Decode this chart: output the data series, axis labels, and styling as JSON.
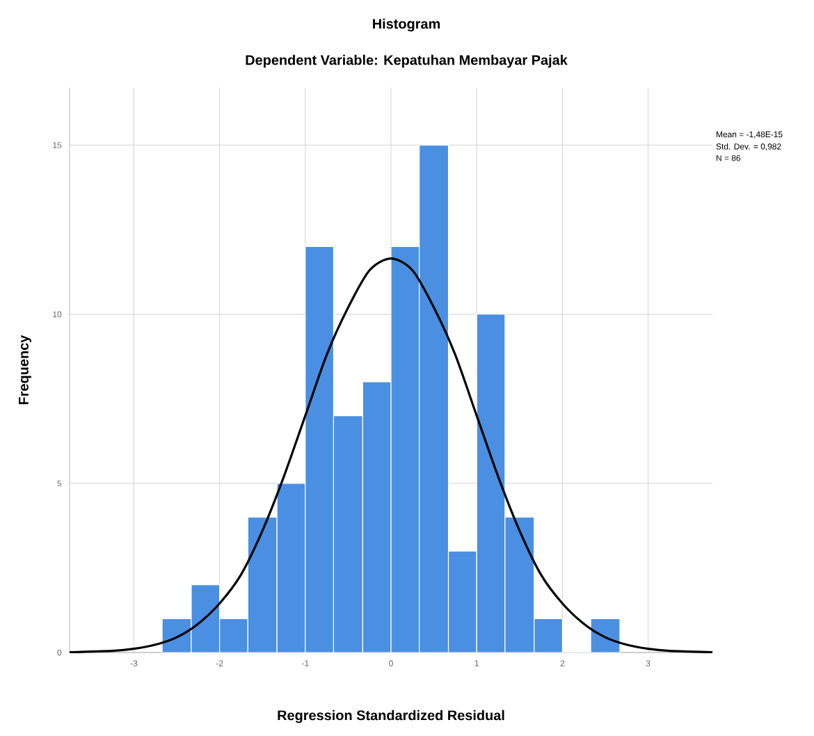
{
  "chart_data": {
    "type": "histogram",
    "title": "Histogram",
    "subtitle": "Dependent Variable: Kepatuhan Membayar Pajak",
    "xlabel": "Regression Standardized Residual",
    "ylabel": "Frequency",
    "annotations": [
      "Mean = -1,48E-15",
      "Std. Dev. = 0,982",
      "N = 86"
    ],
    "series": [
      {
        "color": "#4a8fe2",
        "bins": [
          -2.67,
          -2.33,
          -2.0,
          -1.67,
          -1.33,
          -1.0,
          -0.67,
          -0.33,
          0.0,
          0.33,
          0.67,
          1.0,
          1.33,
          1.67,
          2.0,
          2.33,
          2.67
        ],
        "values": [
          1,
          2,
          1,
          4,
          5,
          12,
          7,
          8,
          12,
          15,
          3,
          10,
          4,
          1,
          0,
          1
        ]
      },
      {
        "type": "line",
        "color": "#000000",
        "x": [
          -3.75,
          -3.25,
          -3.0,
          -2.75,
          -2.5,
          -2.25,
          -2.0,
          -1.75,
          -1.5,
          -1.25,
          -1.0,
          -0.75,
          -0.5,
          -0.25,
          0.0,
          0.25,
          0.5,
          0.75,
          1.0,
          1.25,
          1.5,
          1.75,
          2.0,
          2.25,
          2.5,
          2.75,
          3.0,
          3.25,
          3.75
        ],
        "values": [
          0.01,
          0.05,
          0.11,
          0.23,
          0.45,
          0.85,
          1.45,
          2.3,
          3.6,
          5.2,
          7.0,
          8.8,
          10.2,
          11.3,
          11.65,
          11.3,
          10.2,
          8.8,
          7.0,
          5.2,
          3.6,
          2.3,
          1.45,
          0.85,
          0.45,
          0.23,
          0.11,
          0.05,
          0.01
        ]
      }
    ],
    "xlim": [
      -3.75,
      3.75
    ],
    "ylim": [
      0,
      16.7
    ],
    "xticks": [
      -3,
      -2,
      -1,
      0,
      1,
      2,
      3
    ],
    "yticks": [
      0,
      5,
      10,
      15
    ],
    "grid": true
  }
}
